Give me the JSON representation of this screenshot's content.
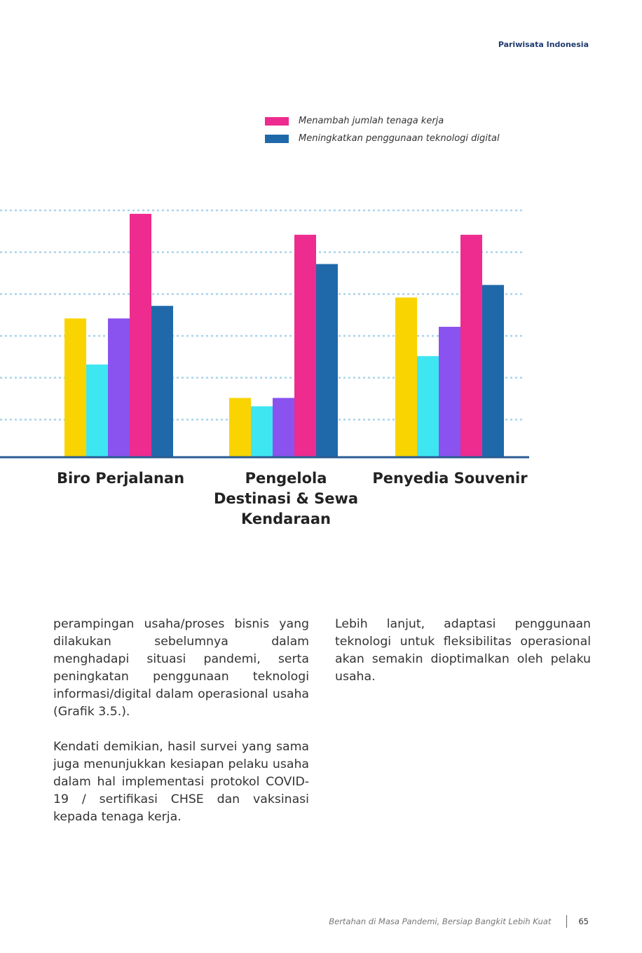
{
  "header": {
    "running_title": "Pariwisata Indonesia"
  },
  "chart_data": {
    "type": "bar",
    "categories": [
      "Biro Perjalanan",
      "Pengelola Destinasi & Sewa Kendaraan",
      "Penyedia Souvenir"
    ],
    "series": [
      {
        "color": "#f9d400",
        "values": [
          33,
          14,
          38
        ]
      },
      {
        "color": "#3ee6f2",
        "values": [
          22,
          12,
          24
        ]
      },
      {
        "color": "#8a52ee",
        "values": [
          33,
          14,
          31
        ]
      },
      {
        "name": "Menambah jumlah tenaga kerja",
        "color": "#ee2b8f",
        "values": [
          58,
          53,
          53
        ]
      },
      {
        "name": "Meningkatkan penggunaan teknologi digital",
        "color": "#1f69aa",
        "values": [
          36,
          46,
          41
        ]
      }
    ],
    "ylim": [
      0,
      60
    ],
    "grid": true,
    "legend": "top"
  },
  "body": {
    "left_col": [
      "perampingan usaha/proses bisnis yang dilakukan sebelumnya dalam menghadapi situasi pandemi, serta peningkatan penggunaan teknologi informasi/digital dalam operasional usaha (Grafik 3.5.).",
      "Kendati demikian, hasil survei yang sama juga menunjukkan kesiapan pelaku usaha dalam hal implementasi protokol COVID-19 / sertifikasi CHSE dan vaksinasi kepada tenaga kerja."
    ],
    "right_col": [
      "Lebih lanjut, adaptasi penggunaan teknologi untuk fleksibilitas operasional akan semakin dioptimalkan oleh pelaku usaha."
    ]
  },
  "footer": {
    "title": "Bertahan di Masa Pandemi, Bersiap Bangkit Lebih Kuat",
    "page": "65"
  }
}
